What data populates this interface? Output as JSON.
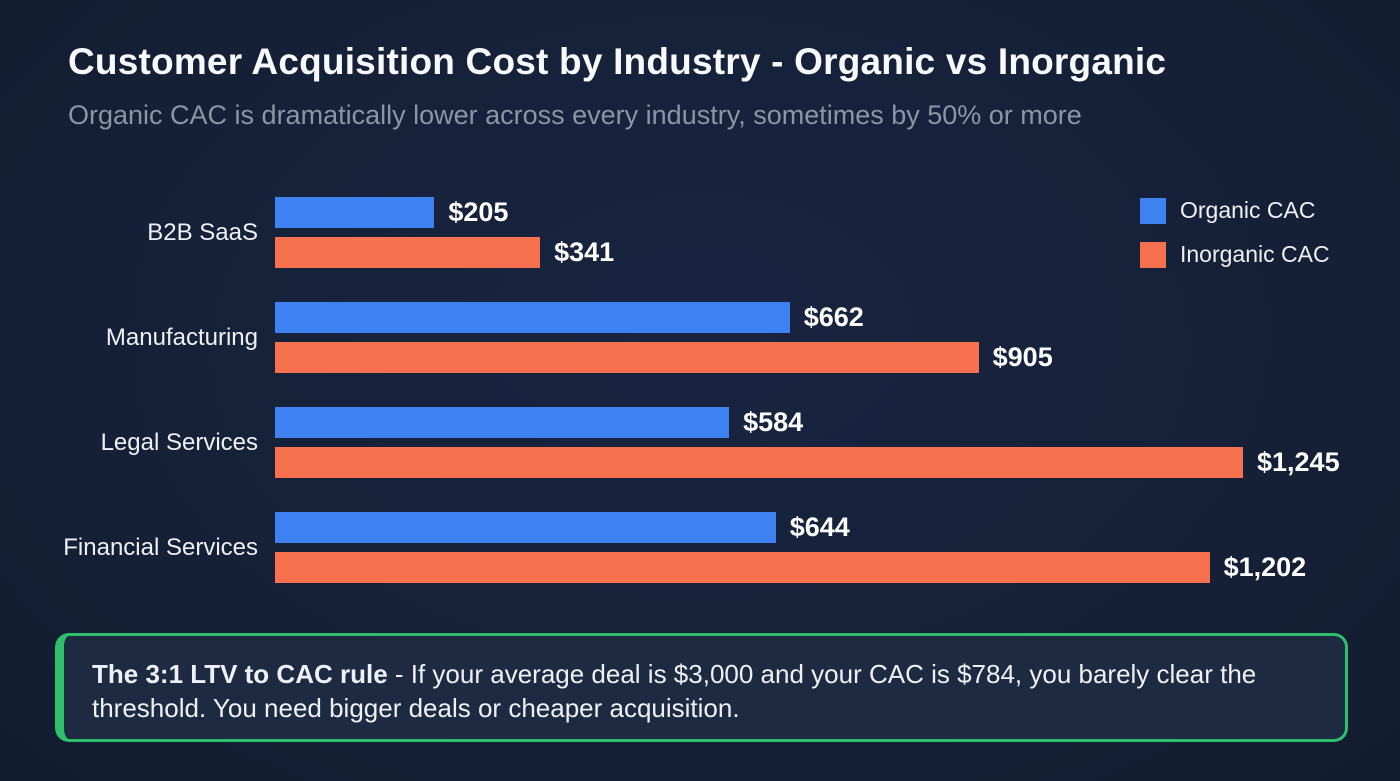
{
  "chart_data": {
    "type": "bar",
    "orientation": "horizontal",
    "title": "Customer Acquisition Cost by Industry - Organic vs Inorganic",
    "subtitle": "Organic CAC is dramatically lower across every industry, sometimes by 50% or more",
    "categories": [
      "B2B SaaS",
      "Manufacturing",
      "Legal Services",
      "Financial Services"
    ],
    "series": [
      {
        "name": "Organic CAC",
        "color": "#3d82f0",
        "values": [
          205,
          662,
          584,
          644
        ],
        "value_labels": [
          "$205",
          "$662",
          "$584",
          "$644"
        ]
      },
      {
        "name": "Inorganic CAC",
        "color": "#f8714f",
        "values": [
          341,
          905,
          1245,
          1202
        ],
        "value_labels": [
          "$341",
          "$905",
          "$1,245",
          "$1,202"
        ]
      }
    ],
    "xmax": 1245,
    "grid": false,
    "legend_position": "top-right"
  },
  "callout": {
    "lead_bold": "The 3:1 LTV to CAC rule",
    "body": " - If your average deal is $3,000 and your CAC is $784, you barely clear the threshold. You need bigger deals or cheaper acquisition.",
    "border_color": "#2ebe6c",
    "background": "#1d2a41"
  },
  "colors": {
    "background_center": "#162136",
    "background_edge": "#0a111f",
    "title_text": "#f7f9fc",
    "subtitle_text": "#8b95a7",
    "label_text": "#edf0f5",
    "value_text": "#ffffff",
    "organic_blue": "#3d82f0",
    "inorganic_orange": "#f8714f",
    "callout_green": "#2ebe6c"
  }
}
